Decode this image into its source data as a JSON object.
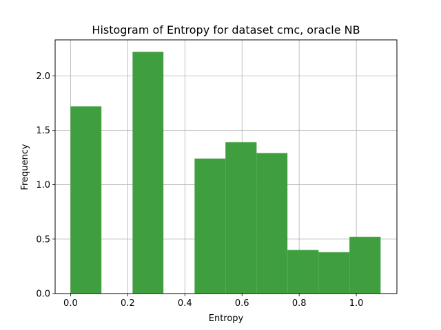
{
  "chart_data": {
    "type": "bar",
    "title": "Histogram of Entropy for dataset cmc, oracle NB",
    "xlabel": "Entropy",
    "ylabel": "Frequency",
    "xlim": [
      -0.054,
      1.142
    ],
    "ylim": [
      0,
      2.33
    ],
    "xticks": [
      0.0,
      0.2,
      0.4,
      0.6,
      0.8,
      1.0
    ],
    "xtick_labels": [
      "0.0",
      "0.2",
      "0.4",
      "0.6",
      "0.8",
      "1.0"
    ],
    "yticks": [
      0.0,
      0.5,
      1.0,
      1.5,
      2.0
    ],
    "ytick_labels": [
      "0.0",
      "0.5",
      "1.0",
      "1.5",
      "2.0"
    ],
    "grid": true,
    "bar_color": "#3f9f3f",
    "bins": [
      {
        "x0": 0.0,
        "x1": 0.108,
        "value": 1.72
      },
      {
        "x0": 0.108,
        "x1": 0.217,
        "value": 0.0
      },
      {
        "x0": 0.217,
        "x1": 0.325,
        "value": 2.22
      },
      {
        "x0": 0.325,
        "x1": 0.434,
        "value": 0.0
      },
      {
        "x0": 0.434,
        "x1": 0.542,
        "value": 1.24
      },
      {
        "x0": 0.542,
        "x1": 0.651,
        "value": 1.39
      },
      {
        "x0": 0.651,
        "x1": 0.759,
        "value": 1.29
      },
      {
        "x0": 0.759,
        "x1": 0.868,
        "value": 0.4
      },
      {
        "x0": 0.868,
        "x1": 0.976,
        "value": 0.38
      },
      {
        "x0": 0.976,
        "x1": 1.085,
        "value": 0.52
      }
    ]
  }
}
